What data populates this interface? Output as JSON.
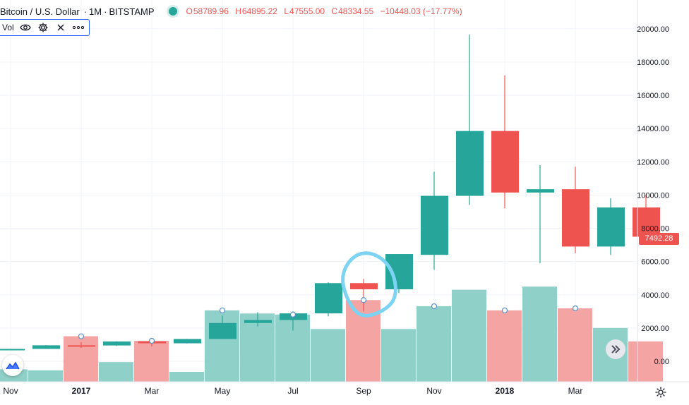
{
  "legend": {
    "symbol": "Bitcoin / U.S. Dollar",
    "interval": "1M",
    "exchange": "BITSTAMP",
    "ohlc": {
      "o_key": "O",
      "o_val": "58789.96",
      "h_key": "H",
      "h_val": "64895.22",
      "l_key": "L",
      "l_val": "47555.00",
      "c_key": "C",
      "c_val": "48334.55",
      "change": "−10448.03 (−17.77%)"
    }
  },
  "volume_study": {
    "label": "Vol"
  },
  "last_price_label": "7492.28",
  "colors": {
    "up": "#26a69a",
    "down": "#ef5350",
    "vol_up": "#8fd0c8",
    "vol_down": "#f5a4a4",
    "annotation": "#7dd3f3"
  },
  "chart_data": {
    "type": "candlestick",
    "price_axis": {
      "range": [
        -1000,
        21100
      ],
      "ticks": [
        "0.00",
        "2000.00",
        "4000.00",
        "6000.00",
        "8000.00",
        "10000.00",
        "12000.00",
        "14000.00",
        "16000.00",
        "18000.00",
        "20000.00"
      ]
    },
    "time_axis": {
      "labels": [
        {
          "text": "Nov",
          "bold": false,
          "i": 0
        },
        {
          "text": "2017",
          "bold": true,
          "i": 2
        },
        {
          "text": "Mar",
          "bold": false,
          "i": 4
        },
        {
          "text": "May",
          "bold": false,
          "i": 6
        },
        {
          "text": "Jul",
          "bold": false,
          "i": 8
        },
        {
          "text": "Sep",
          "bold": false,
          "i": 10
        },
        {
          "text": "Nov",
          "bold": false,
          "i": 12
        },
        {
          "text": "2018",
          "bold": true,
          "i": 14
        },
        {
          "text": "Mar",
          "bold": false,
          "i": 16
        }
      ]
    },
    "candles": [
      {
        "date": "2016-11",
        "o": 700,
        "h": 750,
        "l": 690,
        "c": 742
      },
      {
        "date": "2016-12",
        "o": 742,
        "h": 970,
        "l": 740,
        "c": 960
      },
      {
        "date": "2017-01",
        "o": 960,
        "h": 1150,
        "l": 800,
        "c": 950
      },
      {
        "date": "2017-02",
        "o": 950,
        "h": 1200,
        "l": 920,
        "c": 1190
      },
      {
        "date": "2017-03",
        "o": 1190,
        "h": 1350,
        "l": 900,
        "c": 1080
      },
      {
        "date": "2017-04",
        "o": 1080,
        "h": 1350,
        "l": 1070,
        "c": 1340
      },
      {
        "date": "2017-05",
        "o": 1340,
        "h": 2750,
        "l": 1340,
        "c": 2300
      },
      {
        "date": "2017-06",
        "o": 2300,
        "h": 2950,
        "l": 2100,
        "c": 2480
      },
      {
        "date": "2017-07",
        "o": 2480,
        "h": 3000,
        "l": 1850,
        "c": 2880
      },
      {
        "date": "2017-08",
        "o": 2880,
        "h": 4750,
        "l": 2700,
        "c": 4700
      },
      {
        "date": "2017-09",
        "o": 4700,
        "h": 4950,
        "l": 3000,
        "c": 4330
      },
      {
        "date": "2017-10",
        "o": 4330,
        "h": 6450,
        "l": 4100,
        "c": 6450
      },
      {
        "date": "2017-11",
        "o": 6400,
        "h": 11400,
        "l": 5500,
        "c": 9950
      },
      {
        "date": "2017-12",
        "o": 9950,
        "h": 19650,
        "l": 9400,
        "c": 13850
      },
      {
        "date": "2018-01",
        "o": 13850,
        "h": 17200,
        "l": 9200,
        "c": 10150
      },
      {
        "date": "2018-02",
        "o": 10150,
        "h": 11800,
        "l": 5900,
        "c": 10350
      },
      {
        "date": "2018-03",
        "o": 10350,
        "h": 11700,
        "l": 6500,
        "c": 6900
      },
      {
        "date": "2018-04",
        "o": 6900,
        "h": 9800,
        "l": 6400,
        "c": 9250
      },
      {
        "date": "2018-05",
        "o": 9250,
        "h": 9990,
        "l": 7400,
        "c": 7492.28
      }
    ],
    "volume": {
      "values": [
        600,
        550,
        2200,
        950,
        1980,
        480,
        3450,
        3300,
        3250,
        2550,
        3950,
        2550,
        3650,
        4450,
        3450,
        4600,
        3550,
        2600,
        1950
      ],
      "markers": [
        false,
        false,
        true,
        false,
        true,
        false,
        true,
        false,
        true,
        false,
        true,
        false,
        true,
        false,
        true,
        false,
        true,
        false,
        false
      ]
    },
    "grid": true,
    "annotations": [
      {
        "type": "freehand-circle",
        "date": "2017-09"
      }
    ]
  }
}
